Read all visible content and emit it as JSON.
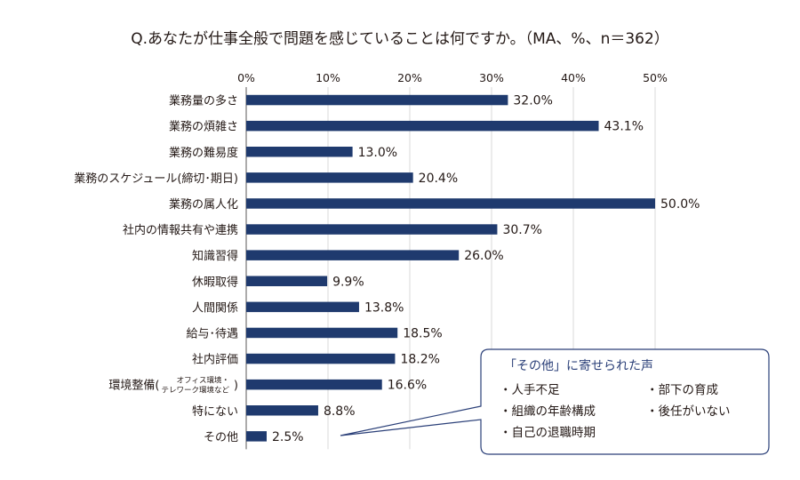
{
  "title": "Q.あなたが仕事全般で問題を感じていることは何ですか。（MA、%、n＝362）",
  "chart_data": {
    "type": "bar",
    "orientation": "horizontal",
    "xlim": [
      0,
      50
    ],
    "ticks": [
      0,
      10,
      20,
      30,
      40,
      50
    ],
    "tick_labels": [
      "0%",
      "10%",
      "20%",
      "30%",
      "40%",
      "50%"
    ],
    "bar_color": "#1f3a6e",
    "categories": [
      {
        "label": "業務量の多さ"
      },
      {
        "label": "業務の煩雑さ"
      },
      {
        "label": "業務の難易度"
      },
      {
        "label": "業務のスケジュール(締切･期日)"
      },
      {
        "label": "業務の属人化"
      },
      {
        "label": "社内の情報共有や連携"
      },
      {
        "label": "知識習得"
      },
      {
        "label": "休暇取得"
      },
      {
        "label": "人間関係"
      },
      {
        "label": "給与･待遇"
      },
      {
        "label": "社内評価"
      },
      {
        "label": "環境整備(",
        "sub1": "オフィス環境・",
        "sub2": "テレワーク環境など",
        "tail": ")"
      },
      {
        "label": "特にない"
      },
      {
        "label": "その他"
      }
    ],
    "values": [
      32.0,
      43.1,
      13.0,
      20.4,
      50.0,
      30.7,
      26.0,
      9.9,
      13.8,
      18.5,
      18.2,
      16.6,
      8.8,
      2.5
    ],
    "value_labels": [
      "32.0%",
      "43.1%",
      "13.0%",
      "20.4%",
      "50.0%",
      "30.7%",
      "26.0%",
      "9.9%",
      "13.8%",
      "18.5%",
      "18.2%",
      "16.6%",
      "8.8%",
      "2.5%"
    ]
  },
  "callout": {
    "title": "「その他」に寄せられた声",
    "col1": [
      "・人手不足",
      "・組織の年齢構成",
      "・自己の退職時期"
    ],
    "col2": [
      "・部下の育成",
      "・後任がいない"
    ],
    "border_color": "#2a3f78"
  }
}
